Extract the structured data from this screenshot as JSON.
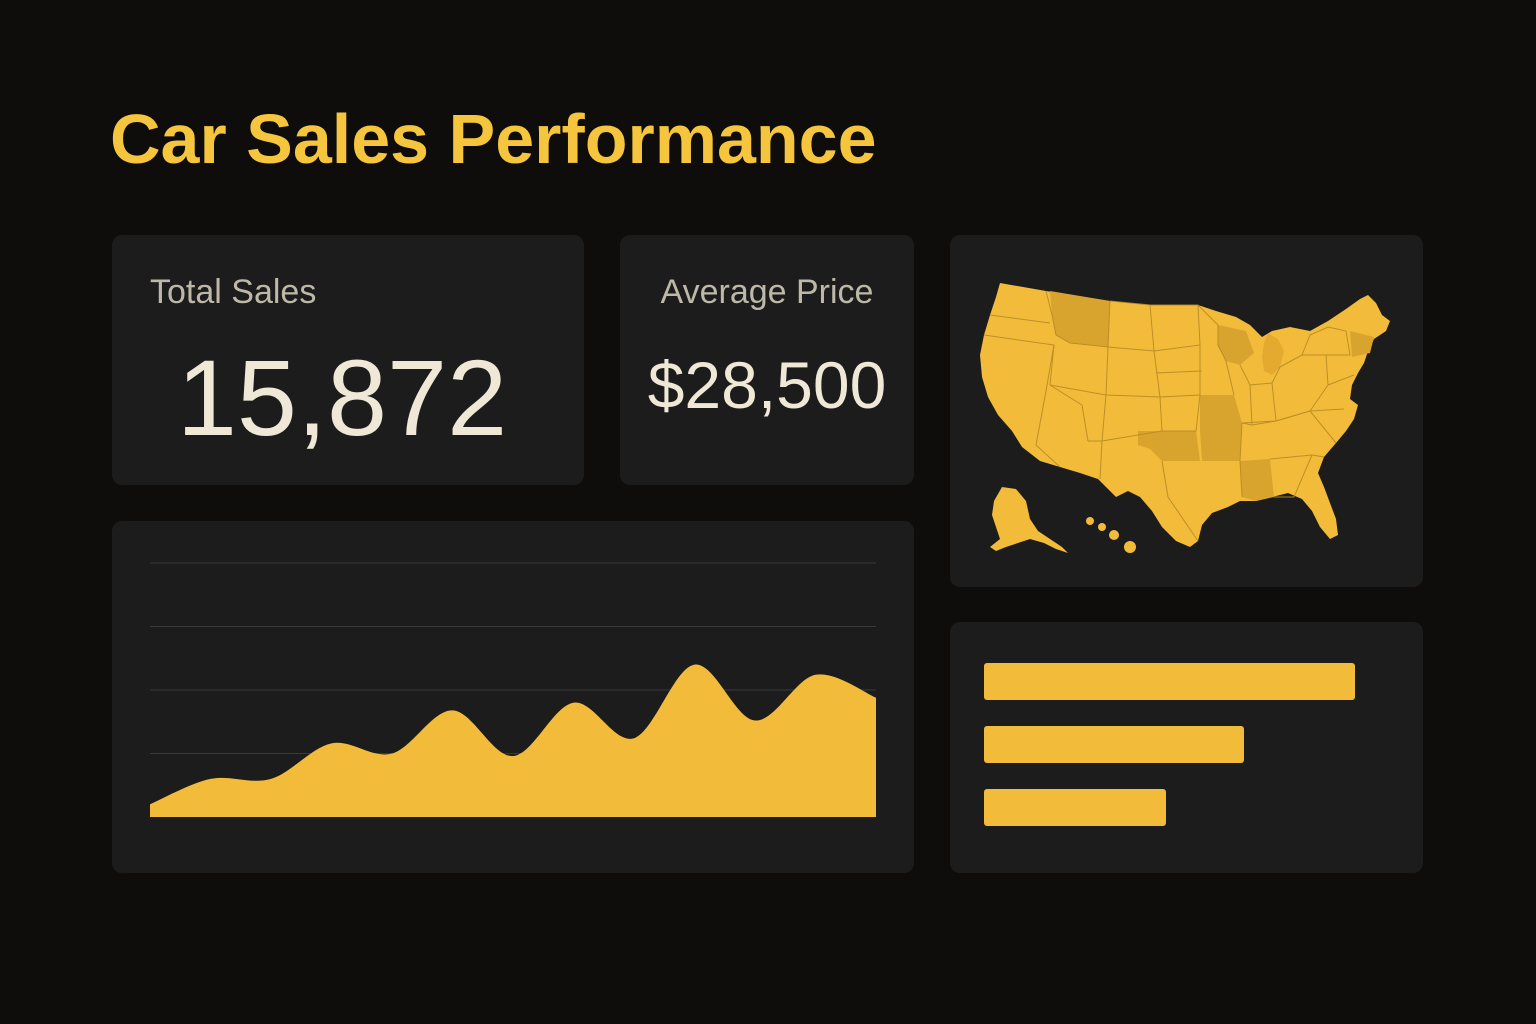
{
  "title": "Car Sales Performance",
  "kpis": {
    "total_sales": {
      "label": "Total Sales",
      "value": "15,872"
    },
    "average_price": {
      "label": "Average Price",
      "value": "$28,500"
    }
  },
  "colors": {
    "accent": "#f2bc3a",
    "title": "#f5c53e",
    "map_dark": "#d9a42e",
    "card": "#1c1c1c",
    "background": "#0e0d0b",
    "text_light": "#efe8d6",
    "text_muted": "#bdb8a8"
  },
  "chart_data": [
    {
      "type": "area",
      "title": "",
      "xlabel": "",
      "ylabel": "",
      "x": [
        0,
        1,
        2,
        3,
        4,
        5,
        6,
        7,
        8,
        9,
        10,
        11,
        12
      ],
      "values": [
        5,
        15,
        15,
        29,
        25,
        42,
        24,
        45,
        31,
        60,
        38,
        56,
        47
      ],
      "ylim": [
        0,
        100
      ],
      "grid": true
    },
    {
      "type": "bar",
      "orientation": "horizontal",
      "values": [
        100,
        70,
        49
      ],
      "xlim": [
        0,
        100
      ]
    }
  ],
  "map": {
    "icon": "us-map-icon",
    "highlighted_regions": [
      "northwest",
      "central-south",
      "midwest-east"
    ]
  }
}
